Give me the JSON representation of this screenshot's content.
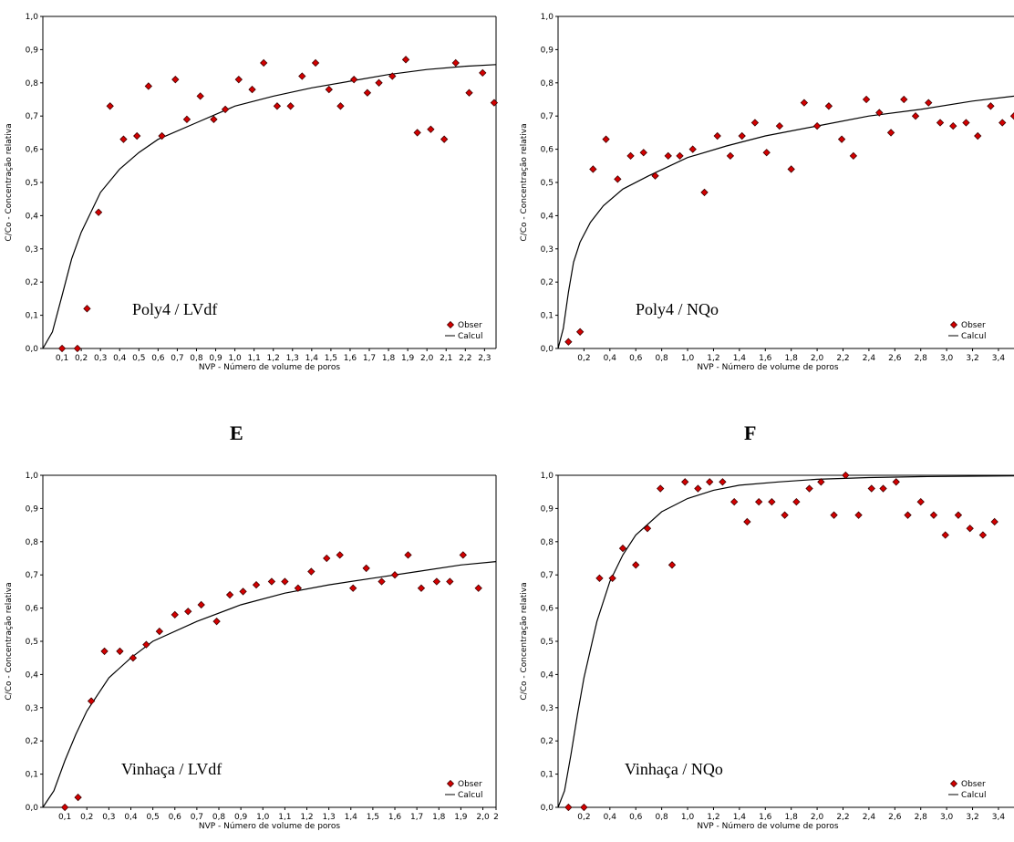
{
  "panel_letters": [
    "E",
    "F"
  ],
  "chart_data": [
    {
      "type": "scatter",
      "annotation": "Poly4 / LVdf",
      "xlabel": "NVP - Número de volume de poros",
      "ylabel": "C/Co - Concentração relativa",
      "xlim": [
        0,
        2.36
      ],
      "ylim": [
        0,
        1.0
      ],
      "xticks": [
        "0,1",
        "0,2",
        "0,3",
        "0,4",
        "0,5",
        "0,6",
        "0,7",
        "0,8",
        "0,9",
        "1,0",
        "1,1",
        "1,2",
        "1,3",
        "1,4",
        "1,5",
        "1,6",
        "1,7",
        "1,8",
        "1,9",
        "2,0",
        "2,1",
        "2,2",
        "2,3"
      ],
      "yticks": [
        "0,0",
        "0,1",
        "0,2",
        "0,3",
        "0,4",
        "0,5",
        "0,6",
        "0,7",
        "0,8",
        "0,9",
        "1,0"
      ],
      "legend": [
        "Obser",
        "Calcul"
      ],
      "legend_position": "bottom-right",
      "series": [
        {
          "name": "Obser",
          "points": [
            [
              0.1,
              0.0
            ],
            [
              0.18,
              0.0
            ],
            [
              0.23,
              0.12
            ],
            [
              0.29,
              0.41
            ],
            [
              0.35,
              0.73
            ],
            [
              0.42,
              0.63
            ],
            [
              0.49,
              0.64
            ],
            [
              0.55,
              0.79
            ],
            [
              0.62,
              0.64
            ],
            [
              0.69,
              0.81
            ],
            [
              0.75,
              0.69
            ],
            [
              0.82,
              0.76
            ],
            [
              0.89,
              0.69
            ],
            [
              0.95,
              0.72
            ],
            [
              1.02,
              0.81
            ],
            [
              1.09,
              0.78
            ],
            [
              1.15,
              0.86
            ],
            [
              1.22,
              0.73
            ],
            [
              1.29,
              0.73
            ],
            [
              1.35,
              0.82
            ],
            [
              1.42,
              0.86
            ],
            [
              1.49,
              0.78
            ],
            [
              1.55,
              0.73
            ],
            [
              1.62,
              0.81
            ],
            [
              1.69,
              0.77
            ],
            [
              1.75,
              0.8
            ],
            [
              1.82,
              0.82
            ],
            [
              1.89,
              0.87
            ],
            [
              1.95,
              0.65
            ],
            [
              2.02,
              0.66
            ],
            [
              2.09,
              0.63
            ],
            [
              2.15,
              0.86
            ],
            [
              2.22,
              0.77
            ],
            [
              2.29,
              0.83
            ],
            [
              2.35,
              0.74
            ]
          ]
        },
        {
          "name": "Calcul",
          "points": [
            [
              0.0,
              0.0
            ],
            [
              0.05,
              0.05
            ],
            [
              0.1,
              0.16
            ],
            [
              0.15,
              0.27
            ],
            [
              0.2,
              0.35
            ],
            [
              0.3,
              0.47
            ],
            [
              0.4,
              0.54
            ],
            [
              0.5,
              0.59
            ],
            [
              0.6,
              0.63
            ],
            [
              0.8,
              0.68
            ],
            [
              1.0,
              0.73
            ],
            [
              1.2,
              0.76
            ],
            [
              1.4,
              0.785
            ],
            [
              1.6,
              0.805
            ],
            [
              1.8,
              0.825
            ],
            [
              2.0,
              0.84
            ],
            [
              2.2,
              0.85
            ],
            [
              2.36,
              0.855
            ]
          ]
        }
      ]
    },
    {
      "type": "scatter",
      "annotation": "Poly4 / NQo",
      "xlabel": "NVP - Número de volume de poros",
      "ylabel": "C/Co - Concentração relativa",
      "xlim": [
        0,
        3.52
      ],
      "ylim": [
        0,
        1.0
      ],
      "xticks": [
        "0,2",
        "0,4",
        "0,6",
        "0,8",
        "1,0",
        "1,2",
        "1,4",
        "1,6",
        "1,8",
        "2,0",
        "2,2",
        "2,4",
        "2,6",
        "2,8",
        "3,0",
        "3,2",
        "3,4"
      ],
      "yticks": [
        "0,0",
        "0,1",
        "0,2",
        "0,3",
        "0,4",
        "0,5",
        "0,6",
        "0,7",
        "0,8",
        "0,9",
        "1,0"
      ],
      "legend": [
        "Obser",
        "Calcul"
      ],
      "legend_position": "bottom-right",
      "series": [
        {
          "name": "Obser",
          "points": [
            [
              0.08,
              0.02
            ],
            [
              0.17,
              0.05
            ],
            [
              0.27,
              0.54
            ],
            [
              0.37,
              0.63
            ],
            [
              0.46,
              0.51
            ],
            [
              0.56,
              0.58
            ],
            [
              0.66,
              0.59
            ],
            [
              0.75,
              0.52
            ],
            [
              0.85,
              0.58
            ],
            [
              0.94,
              0.58
            ],
            [
              1.04,
              0.6
            ],
            [
              1.13,
              0.47
            ],
            [
              1.23,
              0.64
            ],
            [
              1.33,
              0.58
            ],
            [
              1.42,
              0.64
            ],
            [
              1.52,
              0.68
            ],
            [
              1.61,
              0.59
            ],
            [
              1.71,
              0.67
            ],
            [
              1.8,
              0.54
            ],
            [
              1.9,
              0.74
            ],
            [
              2.0,
              0.67
            ],
            [
              2.09,
              0.73
            ],
            [
              2.19,
              0.63
            ],
            [
              2.28,
              0.58
            ],
            [
              2.38,
              0.75
            ],
            [
              2.48,
              0.71
            ],
            [
              2.57,
              0.65
            ],
            [
              2.67,
              0.75
            ],
            [
              2.76,
              0.7
            ],
            [
              2.86,
              0.74
            ],
            [
              2.95,
              0.68
            ],
            [
              3.05,
              0.67
            ],
            [
              3.15,
              0.68
            ],
            [
              3.24,
              0.64
            ],
            [
              3.34,
              0.73
            ],
            [
              3.43,
              0.68
            ],
            [
              3.52,
              0.7
            ]
          ]
        },
        {
          "name": "Calcul",
          "points": [
            [
              0.0,
              0.0
            ],
            [
              0.04,
              0.06
            ],
            [
              0.08,
              0.17
            ],
            [
              0.12,
              0.26
            ],
            [
              0.17,
              0.32
            ],
            [
              0.25,
              0.38
            ],
            [
              0.35,
              0.43
            ],
            [
              0.5,
              0.48
            ],
            [
              0.7,
              0.52
            ],
            [
              1.0,
              0.575
            ],
            [
              1.3,
              0.61
            ],
            [
              1.6,
              0.64
            ],
            [
              2.0,
              0.67
            ],
            [
              2.4,
              0.7
            ],
            [
              2.8,
              0.72
            ],
            [
              3.2,
              0.745
            ],
            [
              3.52,
              0.76
            ]
          ]
        }
      ]
    },
    {
      "type": "scatter",
      "annotation": "Vinhaça / LVdf",
      "xlabel": "NVP - Número de volume de poros",
      "ylabel": "C/Co - Concentração relativa",
      "xlim": [
        0,
        2.06
      ],
      "ylim": [
        0,
        1.0
      ],
      "xticks": [
        "0,1",
        "0,2",
        "0,3",
        "0,4",
        "0,5",
        "0,6",
        "0,7",
        "0,8",
        "0,9",
        "1,0",
        "1,1",
        "1,2",
        "1,3",
        "1,4",
        "1,5",
        "1,6",
        "1,7",
        "1,8",
        "1,9",
        "2,0",
        "2"
      ],
      "yticks": [
        "0,0",
        "0,1",
        "0,2",
        "0,3",
        "0,4",
        "0,5",
        "0,6",
        "0,7",
        "0,8",
        "0,9",
        "1,0"
      ],
      "legend": [
        "Obser",
        "Calcul"
      ],
      "legend_position": "bottom-right",
      "series": [
        {
          "name": "Obser",
          "points": [
            [
              0.1,
              0.0
            ],
            [
              0.16,
              0.03
            ],
            [
              0.22,
              0.32
            ],
            [
              0.28,
              0.47
            ],
            [
              0.35,
              0.47
            ],
            [
              0.41,
              0.45
            ],
            [
              0.47,
              0.49
            ],
            [
              0.53,
              0.53
            ],
            [
              0.6,
              0.58
            ],
            [
              0.66,
              0.59
            ],
            [
              0.72,
              0.61
            ],
            [
              0.79,
              0.56
            ],
            [
              0.85,
              0.64
            ],
            [
              0.91,
              0.65
            ],
            [
              0.97,
              0.67
            ],
            [
              1.04,
              0.68
            ],
            [
              1.1,
              0.68
            ],
            [
              1.16,
              0.66
            ],
            [
              1.22,
              0.71
            ],
            [
              1.29,
              0.75
            ],
            [
              1.35,
              0.76
            ],
            [
              1.41,
              0.66
            ],
            [
              1.47,
              0.72
            ],
            [
              1.54,
              0.68
            ],
            [
              1.6,
              0.7
            ],
            [
              1.66,
              0.76
            ],
            [
              1.72,
              0.66
            ],
            [
              1.79,
              0.68
            ],
            [
              1.85,
              0.68
            ],
            [
              1.91,
              0.76
            ],
            [
              1.98,
              0.66
            ]
          ]
        },
        {
          "name": "Calcul",
          "points": [
            [
              0.0,
              0.0
            ],
            [
              0.05,
              0.05
            ],
            [
              0.1,
              0.14
            ],
            [
              0.15,
              0.22
            ],
            [
              0.2,
              0.29
            ],
            [
              0.3,
              0.39
            ],
            [
              0.4,
              0.45
            ],
            [
              0.5,
              0.5
            ],
            [
              0.7,
              0.56
            ],
            [
              0.9,
              0.61
            ],
            [
              1.1,
              0.645
            ],
            [
              1.3,
              0.67
            ],
            [
              1.5,
              0.69
            ],
            [
              1.7,
              0.71
            ],
            [
              1.9,
              0.73
            ],
            [
              2.06,
              0.74
            ]
          ]
        }
      ]
    },
    {
      "type": "scatter",
      "annotation": "Vinhaça / NQo",
      "xlabel": "NVP - Número de volume de poros",
      "ylabel": "C/Co - Concentração relativa",
      "xlim": [
        0,
        3.52
      ],
      "ylim": [
        0,
        1.0
      ],
      "xticks": [
        "0,2",
        "0,4",
        "0,6",
        "0,8",
        "1,0",
        "1,2",
        "1,4",
        "1,6",
        "1,8",
        "2,0",
        "2,2",
        "2,4",
        "2,6",
        "2,8",
        "3,0",
        "3,2",
        "3,4"
      ],
      "yticks": [
        "0,0",
        "0,1",
        "0,2",
        "0,3",
        "0,4",
        "0,5",
        "0,6",
        "0,7",
        "0,8",
        "0,9",
        "1,0"
      ],
      "legend": [
        "Obser",
        "Calcul"
      ],
      "legend_position": "bottom-right",
      "series": [
        {
          "name": "Obser",
          "points": [
            [
              0.08,
              0.0
            ],
            [
              0.2,
              0.0
            ],
            [
              0.32,
              0.69
            ],
            [
              0.42,
              0.69
            ],
            [
              0.5,
              0.78
            ],
            [
              0.6,
              0.73
            ],
            [
              0.69,
              0.84
            ],
            [
              0.79,
              0.96
            ],
            [
              0.88,
              0.73
            ],
            [
              0.98,
              0.98
            ],
            [
              1.08,
              0.96
            ],
            [
              1.17,
              0.98
            ],
            [
              1.27,
              0.98
            ],
            [
              1.36,
              0.92
            ],
            [
              1.46,
              0.86
            ],
            [
              1.55,
              0.92
            ],
            [
              1.65,
              0.92
            ],
            [
              1.75,
              0.88
            ],
            [
              1.84,
              0.92
            ],
            [
              1.94,
              0.96
            ],
            [
              2.03,
              0.98
            ],
            [
              2.13,
              0.88
            ],
            [
              2.22,
              1.0
            ],
            [
              2.32,
              0.88
            ],
            [
              2.42,
              0.96
            ],
            [
              2.51,
              0.96
            ],
            [
              2.61,
              0.98
            ],
            [
              2.7,
              0.88
            ],
            [
              2.8,
              0.92
            ],
            [
              2.9,
              0.88
            ],
            [
              2.99,
              0.82
            ],
            [
              3.09,
              0.88
            ],
            [
              3.18,
              0.84
            ],
            [
              3.28,
              0.82
            ],
            [
              3.37,
              0.86
            ]
          ]
        },
        {
          "name": "Calcul",
          "points": [
            [
              0.0,
              0.0
            ],
            [
              0.05,
              0.05
            ],
            [
              0.1,
              0.16
            ],
            [
              0.15,
              0.28
            ],
            [
              0.2,
              0.39
            ],
            [
              0.3,
              0.56
            ],
            [
              0.4,
              0.68
            ],
            [
              0.5,
              0.76
            ],
            [
              0.6,
              0.82
            ],
            [
              0.8,
              0.89
            ],
            [
              1.0,
              0.93
            ],
            [
              1.2,
              0.955
            ],
            [
              1.4,
              0.97
            ],
            [
              1.7,
              0.98
            ],
            [
              2.0,
              0.988
            ],
            [
              2.4,
              0.993
            ],
            [
              2.8,
              0.996
            ],
            [
              3.52,
              0.998
            ]
          ]
        }
      ]
    }
  ]
}
